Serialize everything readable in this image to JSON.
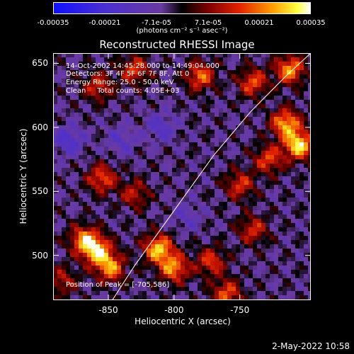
{
  "colorbar": {
    "tick_labels": [
      "-0.00035",
      "-0.00021",
      "-7.1e-05",
      "7.1e-05",
      "0.00021",
      "0.00035"
    ],
    "units": "(photons cm⁻² s⁻¹ asec⁻²)"
  },
  "plot": {
    "title": "Reconstructed RHESSI Image",
    "annotations": [
      "14-Oct-2002 14:45:28.000 to 14:49:04.000",
      "Detectors: 3F 4F 5F 6F 7F 8F, Att 0",
      "Energy Range: 25.0 - 50.0 keV",
      "Clean     Total counts: 4.05E+03"
    ],
    "peak_label": "Position of Peak = [-705,586]"
  },
  "chart_data": {
    "type": "heatmap",
    "title": "Reconstructed RHESSI Image",
    "xlabel": "Heliocentric X (arcsec)",
    "ylabel": "Heliocentric Y (arcsec)",
    "xlim": [
      -892,
      -696
    ],
    "ylim": [
      465,
      658
    ],
    "x_tick_labels": [
      "-850",
      "-800",
      "-750"
    ],
    "x_ticks": [
      -850,
      -800,
      -750
    ],
    "y_tick_labels": [
      "500",
      "550",
      "600",
      "650"
    ],
    "y_ticks": [
      500,
      550,
      600,
      650
    ],
    "colorbar_range": [
      -0.00035,
      0.00035
    ],
    "limb_curve": [
      [
        -847,
        465
      ],
      [
        -830,
        492
      ],
      [
        -800,
        535
      ],
      [
        -770,
        578
      ],
      [
        -742,
        612
      ],
      [
        -715,
        640
      ],
      [
        -696,
        658
      ]
    ],
    "peak_position": [
      -705,
      586
    ],
    "intensity_blobs": [
      {
        "x": -868,
        "y": 512,
        "value": 0.00028
      },
      {
        "x": -858,
        "y": 503,
        "value": 0.0003
      },
      {
        "x": -848,
        "y": 490,
        "value": 0.00026
      },
      {
        "x": -812,
        "y": 505,
        "value": 0.00032
      },
      {
        "x": -800,
        "y": 490,
        "value": 0.00027
      },
      {
        "x": -772,
        "y": 495,
        "value": 0.0002
      },
      {
        "x": -740,
        "y": 520,
        "value": 0.00018
      },
      {
        "x": -705,
        "y": 586,
        "value": 0.00035
      },
      {
        "x": -715,
        "y": 603,
        "value": 0.0003
      },
      {
        "x": -712,
        "y": 645,
        "value": 0.00028
      },
      {
        "x": -740,
        "y": 635,
        "value": 0.00022
      },
      {
        "x": -780,
        "y": 640,
        "value": 0.00024
      },
      {
        "x": -830,
        "y": 645,
        "value": 0.0002
      },
      {
        "x": -858,
        "y": 632,
        "value": 0.00018
      },
      {
        "x": -855,
        "y": 560,
        "value": 0.00022
      },
      {
        "x": -830,
        "y": 548,
        "value": 0.00016
      },
      {
        "x": -750,
        "y": 555,
        "value": 0.00019
      },
      {
        "x": -728,
        "y": 575,
        "value": 0.00021
      },
      {
        "x": -885,
        "y": 480,
        "value": 0.00015
      },
      {
        "x": -760,
        "y": 470,
        "value": 0.00022
      },
      {
        "x": -810,
        "y": 600,
        "value": -0.00012
      },
      {
        "x": -840,
        "y": 590,
        "value": -0.0001
      },
      {
        "x": -790,
        "y": 530,
        "value": -8e-05
      },
      {
        "x": -880,
        "y": 590,
        "value": -0.00015
      }
    ]
  },
  "footer": {
    "datestamp": "2-May-2022 10:58"
  }
}
